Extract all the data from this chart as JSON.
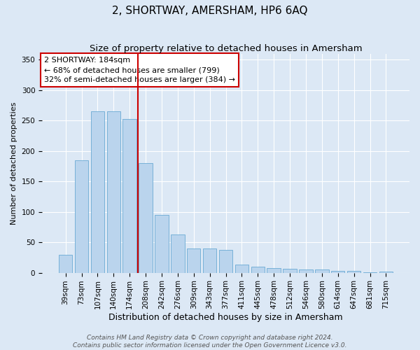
{
  "title": "2, SHORTWAY, AMERSHAM, HP6 6AQ",
  "subtitle": "Size of property relative to detached houses in Amersham",
  "xlabel": "Distribution of detached houses by size in Amersham",
  "ylabel": "Number of detached properties",
  "categories": [
    "39sqm",
    "73sqm",
    "107sqm",
    "140sqm",
    "174sqm",
    "208sqm",
    "242sqm",
    "276sqm",
    "309sqm",
    "343sqm",
    "377sqm",
    "411sqm",
    "445sqm",
    "478sqm",
    "512sqm",
    "546sqm",
    "580sqm",
    "614sqm",
    "647sqm",
    "681sqm",
    "715sqm"
  ],
  "values": [
    30,
    185,
    265,
    265,
    253,
    180,
    95,
    63,
    40,
    40,
    38,
    13,
    10,
    8,
    7,
    5,
    5,
    3,
    3,
    1,
    2
  ],
  "bar_color": "#bad4ed",
  "bar_edge_color": "#6aaad4",
  "vline_x_index": 4.5,
  "vline_color": "#cc0000",
  "annotation_text": "2 SHORTWAY: 184sqm\n← 68% of detached houses are smaller (799)\n32% of semi-detached houses are larger (384) →",
  "annotation_box_edgecolor": "#cc0000",
  "ylim": [
    0,
    360
  ],
  "yticks": [
    0,
    50,
    100,
    150,
    200,
    250,
    300,
    350
  ],
  "bg_color": "#dce8f5",
  "grid_color": "#ffffff",
  "footer": "Contains HM Land Registry data © Crown copyright and database right 2024.\nContains public sector information licensed under the Open Government Licence v3.0.",
  "title_fontsize": 11,
  "subtitle_fontsize": 9.5,
  "xlabel_fontsize": 9,
  "ylabel_fontsize": 8,
  "tick_fontsize": 7.5,
  "annotation_fontsize": 8,
  "footer_fontsize": 6.5
}
